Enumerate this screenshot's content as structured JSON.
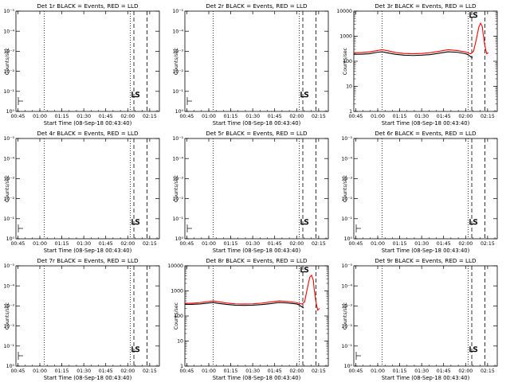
{
  "figure": {
    "x_tick_labels": [
      "00:45",
      "01:00",
      "01:15",
      "01:30",
      "01:45",
      "02:00",
      "02:15"
    ],
    "x_ticks_hours": [
      0.75,
      1.0,
      1.25,
      1.5,
      1.75,
      2.0,
      2.25
    ],
    "ylabel": "Counts/sec",
    "xlabel": "Start Time (08-Sep-18 00:43:40)",
    "empty_y_tick_labels": [
      "10⁻⁵",
      "10⁻⁴",
      "10⁻³",
      "10⁻²",
      "10⁻¹",
      "10⁰"
    ],
    "log_y_tick_labels": [
      "1",
      "10",
      "100",
      "1000",
      "10000"
    ],
    "annotation": "LS",
    "colors": {
      "events": "#000000",
      "lld": "#ff0000",
      "axes": "#000000",
      "background": "#ffffff"
    }
  },
  "chart_data": [
    {
      "type": "line",
      "detector": "1r",
      "title": "Det 1r BLACK = Events, RED = LLD",
      "xlabel": "Start Time (08-Sep-18 00:43:40)",
      "ylabel": "Counts/sec",
      "scale": "empty",
      "xlim": [
        0.728,
        2.36
      ],
      "ylim": [
        1e-05,
        1
      ],
      "dotted_lines_hours": [
        1.05,
        2.03
      ],
      "dashed_lines_hours": [
        2.07,
        2.22
      ],
      "series": []
    },
    {
      "type": "line",
      "detector": "2r",
      "title": "Det 2r BLACK = Events, RED = LLD",
      "xlabel": "Start Time (08-Sep-18 00:43:40)",
      "ylabel": "Counts/sec",
      "scale": "empty",
      "xlim": [
        0.728,
        2.36
      ],
      "ylim": [
        1e-05,
        1
      ],
      "dotted_lines_hours": [
        1.05,
        2.03
      ],
      "dashed_lines_hours": [
        2.07,
        2.22
      ],
      "series": []
    },
    {
      "type": "line",
      "detector": "3r",
      "title": "Det 3r BLACK = Events, RED = LLD",
      "xlabel": "Start Time (08-Sep-18 00:43:40)",
      "ylabel": "Counts/sec",
      "scale": "log",
      "xlim": [
        0.728,
        2.36
      ],
      "ylim": [
        1,
        10000
      ],
      "dotted_lines_hours": [
        1.05,
        2.03
      ],
      "dashed_lines_hours": [
        2.07,
        2.22
      ],
      "series": [
        {
          "color": "#000000",
          "x": [
            0.73,
            0.8,
            0.9,
            1.0,
            1.05,
            1.1,
            1.2,
            1.3,
            1.4,
            1.5,
            1.6,
            1.7,
            1.8,
            1.9,
            2.0,
            2.03,
            2.06,
            2.08
          ],
          "y": [
            190,
            190,
            200,
            230,
            240,
            220,
            190,
            175,
            170,
            175,
            185,
            210,
            240,
            230,
            200,
            180,
            150,
            140
          ]
        },
        {
          "color": "#ff0000",
          "x": [
            0.73,
            0.8,
            0.9,
            1.0,
            1.05,
            1.1,
            1.2,
            1.3,
            1.4,
            1.5,
            1.6,
            1.7,
            1.8,
            1.9,
            2.0,
            2.03,
            2.06,
            2.09,
            2.12,
            2.15,
            2.17,
            2.19,
            2.2,
            2.22,
            2.24,
            2.26
          ],
          "y": [
            220,
            220,
            235,
            270,
            290,
            270,
            225,
            205,
            200,
            205,
            220,
            250,
            290,
            270,
            235,
            210,
            200,
            250,
            700,
            2300,
            3300,
            2400,
            1200,
            400,
            200,
            220
          ]
        }
      ]
    },
    {
      "type": "line",
      "detector": "4r",
      "title": "Det 4r BLACK = Events, RED = LLD",
      "xlabel": "Start Time (08-Sep-18 00:43:40)",
      "ylabel": "Counts/sec",
      "scale": "empty",
      "xlim": [
        0.728,
        2.36
      ],
      "ylim": [
        1e-05,
        1
      ],
      "dotted_lines_hours": [
        1.05,
        2.03
      ],
      "dashed_lines_hours": [
        2.07,
        2.22
      ],
      "series": []
    },
    {
      "type": "line",
      "detector": "5r",
      "title": "Det 5r BLACK = Events, RED = LLD",
      "xlabel": "Start Time (08-Sep-18 00:43:40)",
      "ylabel": "Counts/sec",
      "scale": "empty",
      "xlim": [
        0.728,
        2.36
      ],
      "ylim": [
        1e-05,
        1
      ],
      "dotted_lines_hours": [
        1.05,
        2.03
      ],
      "dashed_lines_hours": [
        2.07,
        2.22
      ],
      "series": []
    },
    {
      "type": "line",
      "detector": "6r",
      "title": "Det 6r BLACK = Events, RED = LLD",
      "xlabel": "Start Time (08-Sep-18 00:43:40)",
      "ylabel": "Counts/sec",
      "scale": "empty",
      "xlim": [
        0.728,
        2.36
      ],
      "ylim": [
        1e-05,
        1
      ],
      "dotted_lines_hours": [
        1.05,
        2.03
      ],
      "dashed_lines_hours": [
        2.07,
        2.22
      ],
      "series": []
    },
    {
      "type": "line",
      "detector": "7r",
      "title": "Det 7r BLACK = Events, RED = LLD",
      "xlabel": "Start Time (08-Sep-18 00:43:40)",
      "ylabel": "Counts/sec",
      "scale": "empty",
      "xlim": [
        0.728,
        2.36
      ],
      "ylim": [
        1e-05,
        1
      ],
      "dotted_lines_hours": [
        1.05,
        2.03
      ],
      "dashed_lines_hours": [
        2.07,
        2.22
      ],
      "series": []
    },
    {
      "type": "line",
      "detector": "8r",
      "title": "Det 8r BLACK = Events, RED = LLD",
      "xlabel": "Start Time (08-Sep-18 00:43:40)",
      "ylabel": "Counts/sec",
      "scale": "log",
      "xlim": [
        0.728,
        2.36
      ],
      "ylim": [
        1,
        10000
      ],
      "dotted_lines_hours": [
        1.05,
        2.03
      ],
      "dashed_lines_hours": [
        2.07,
        2.22
      ],
      "series": [
        {
          "color": "#000000",
          "x": [
            0.73,
            0.8,
            0.9,
            1.0,
            1.05,
            1.1,
            1.2,
            1.3,
            1.4,
            1.5,
            1.6,
            1.7,
            1.8,
            1.9,
            2.0,
            2.03,
            2.06,
            2.08
          ],
          "y": [
            290,
            290,
            300,
            330,
            345,
            320,
            290,
            270,
            265,
            270,
            285,
            310,
            345,
            330,
            300,
            270,
            230,
            210
          ]
        },
        {
          "color": "#ff0000",
          "x": [
            0.73,
            0.8,
            0.9,
            1.0,
            1.05,
            1.1,
            1.2,
            1.3,
            1.4,
            1.5,
            1.6,
            1.7,
            1.8,
            1.9,
            2.0,
            2.03,
            2.06,
            2.09,
            2.12,
            2.15,
            2.17,
            2.19,
            2.2,
            2.22,
            2.24,
            2.26
          ],
          "y": [
            320,
            320,
            340,
            380,
            400,
            375,
            330,
            305,
            300,
            305,
            325,
            360,
            400,
            380,
            340,
            310,
            300,
            360,
            1200,
            3600,
            4200,
            2600,
            1100,
            350,
            170,
            200
          ]
        }
      ]
    },
    {
      "type": "line",
      "detector": "9r",
      "title": "Det 9r BLACK = Events, RED = LLD",
      "xlabel": "Start Time (08-Sep-18 00:43:40)",
      "ylabel": "Counts/sec",
      "scale": "empty",
      "xlim": [
        0.728,
        2.36
      ],
      "ylim": [
        1e-05,
        1
      ],
      "dotted_lines_hours": [
        1.05,
        2.03
      ],
      "dashed_lines_hours": [
        2.07,
        2.22
      ],
      "series": []
    }
  ]
}
